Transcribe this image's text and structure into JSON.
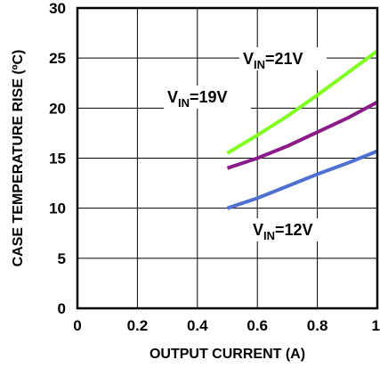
{
  "chart_data": {
    "type": "line",
    "xlabel": "OUTPUT CURRENT (A)",
    "ylabel": "CASE TEMPERATURE RISE (ºC)",
    "xlim": [
      0,
      1
    ],
    "ylim": [
      0,
      30
    ],
    "xticks": [
      "0",
      "0.2",
      "0.4",
      "0.6",
      "0.8",
      "1"
    ],
    "yticks": [
      "0",
      "5",
      "10",
      "15",
      "20",
      "25",
      "30"
    ],
    "grid": true,
    "legend": "none",
    "series": [
      {
        "name": "VIN=21V",
        "color": "#80ff20",
        "label": {
          "main": "V",
          "sub": "IN",
          "rest": "=21V"
        },
        "x": [
          0.5,
          0.6,
          0.7,
          0.8,
          0.9,
          1.0
        ],
        "y": [
          15.5,
          17.3,
          19.2,
          21.3,
          23.5,
          25.7
        ]
      },
      {
        "name": "VIN=19V",
        "color": "#8b1a8b",
        "label": {
          "main": "V",
          "sub": "IN",
          "rest": "=19V"
        },
        "x": [
          0.5,
          0.6,
          0.7,
          0.8,
          0.9,
          1.0
        ],
        "y": [
          14.0,
          15.0,
          16.2,
          17.6,
          19.0,
          20.6
        ]
      },
      {
        "name": "VIN=12V",
        "color": "#5070d0",
        "label": {
          "main": "V",
          "sub": "IN",
          "rest": "=12V"
        },
        "x": [
          0.5,
          0.6,
          0.7,
          0.8,
          0.9,
          1.0
        ],
        "y": [
          10.0,
          11.0,
          12.2,
          13.4,
          14.5,
          15.7
        ]
      }
    ]
  }
}
